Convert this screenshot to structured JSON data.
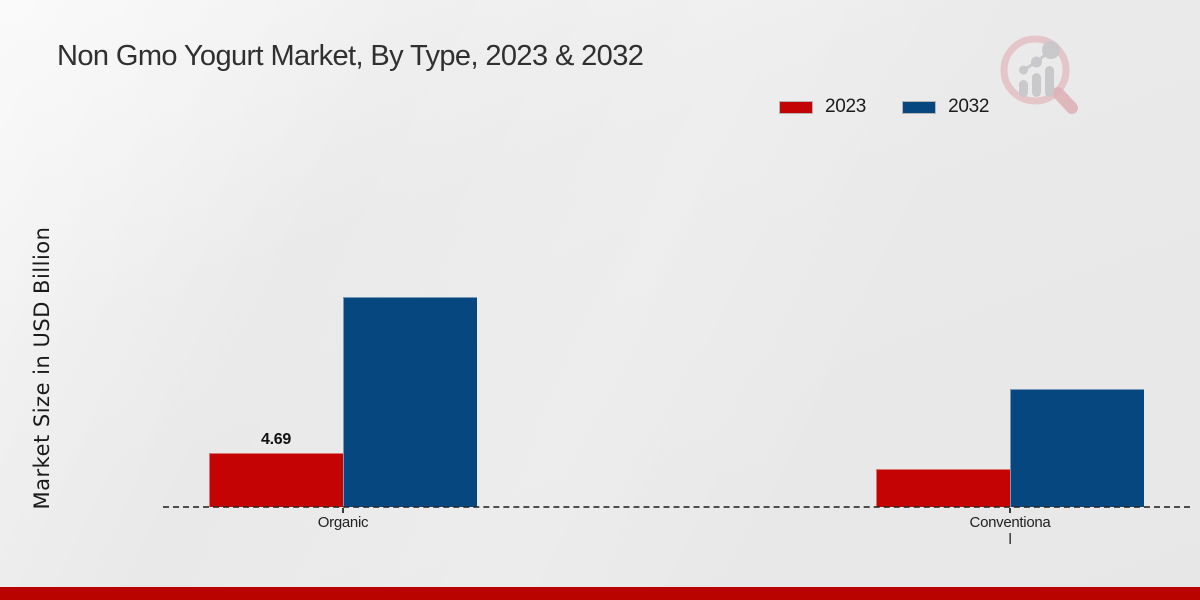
{
  "title": "Non Gmo Yogurt Market, By Type, 2023 & 2032",
  "ylabel": "Market Size in USD Billion",
  "legend": {
    "items": [
      {
        "label": "2023",
        "color": "#c40404"
      },
      {
        "label": "2032",
        "color": "#07477f"
      }
    ]
  },
  "chart_data": {
    "type": "bar",
    "title": "Non Gmo Yogurt Market, By Type, 2023 & 2032",
    "xlabel": "",
    "ylabel": "Market Size in USD Billion",
    "categories": [
      "Organic",
      "Conventional"
    ],
    "categories_display": [
      [
        "Organic"
      ],
      [
        "Conventiona",
        "l"
      ]
    ],
    "series": [
      {
        "name": "2023",
        "color": "#c40404",
        "values": [
          4.69,
          3.3
        ],
        "labels": [
          "4.69",
          ""
        ]
      },
      {
        "name": "2032",
        "color": "#07477f",
        "values": [
          18.1,
          10.2
        ],
        "labels": [
          "",
          ""
        ]
      }
    ],
    "ylim": [
      0,
      19
    ],
    "grid": false,
    "baseline_style": "dashed",
    "legend_position": "top-right",
    "units": "USD Billion"
  },
  "branding": {
    "logo_icon": "magnifier-bar-chart-watermark",
    "footer_color": "#b80300",
    "logo_circle_color": "#e3bec2",
    "logo_bars_color": "#c8c8cb"
  }
}
